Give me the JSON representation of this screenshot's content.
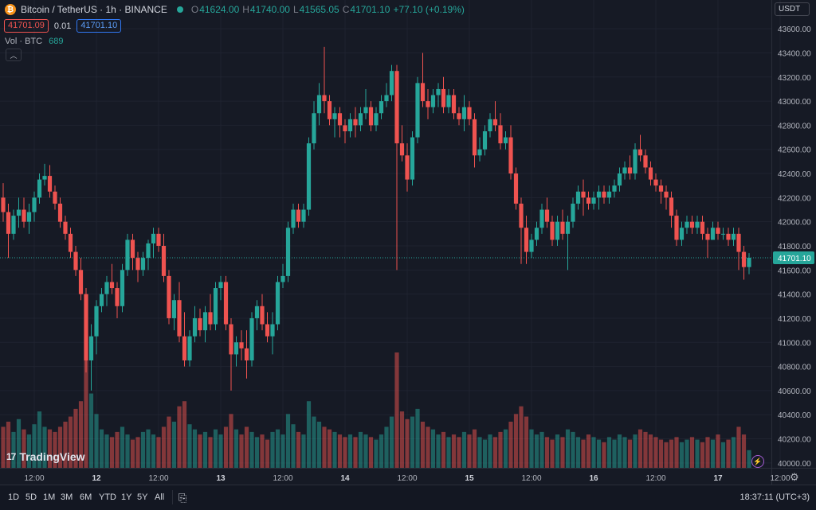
{
  "header": {
    "symbol_icon": "bitcoin-logo-icon",
    "title": "Bitcoin / TetherUS · 1h · BINANCE",
    "open_label": "O",
    "open": "41624.00",
    "high_label": "H",
    "high": "41740.00",
    "low_label": "L",
    "low": "41565.05",
    "close_label": "C",
    "close": "41701.10",
    "change": "+77.10 (+0.19%)"
  },
  "trade": {
    "sell_price": "41701.09",
    "spread": "0.01",
    "buy_price": "41701.10"
  },
  "volume_label": "Vol · BTC",
  "volume_value": "689",
  "currency_button": "USDT",
  "watermark": "TradingView",
  "last_price_label": "41701.10",
  "colors": {
    "up": "#26a69a",
    "down": "#ef5350",
    "background": "#161a25",
    "grid": "#1f2330",
    "price_line": "#26a69a"
  },
  "toolbar": {
    "ranges": [
      "1D",
      "5D",
      "1M",
      "3M",
      "6M",
      "YTD",
      "1Y",
      "5Y",
      "All"
    ],
    "time": "18:37:11 (UTC+3)"
  },
  "chart_data": {
    "type": "candlestick",
    "title": "Bitcoin / TetherUS · 1h · BINANCE",
    "y_axis": {
      "min": 39900,
      "max": 43700,
      "ticks": [
        40000,
        40200,
        40400,
        40600,
        40800,
        41000,
        41200,
        41400,
        41600,
        41800,
        42000,
        42200,
        42400,
        42600,
        42800,
        43000,
        43200,
        43400,
        43600
      ]
    },
    "y_tick_labels": [
      "40000.00",
      "40200.00",
      "40400.00",
      "40600.00",
      "40800.00",
      "41000.00",
      "41200.00",
      "41400.00",
      "41600.00",
      "41800.00",
      "42000.00",
      "42200.00",
      "42400.00",
      "42600.00",
      "42800.00",
      "43000.00",
      "43200.00",
      "43400.00",
      "43600.00"
    ],
    "x_tick_labels": [
      {
        "label": "12:00",
        "bar": 6
      },
      {
        "label": "12",
        "bar": 18
      },
      {
        "label": "12:00",
        "bar": 30
      },
      {
        "label": "13",
        "bar": 42
      },
      {
        "label": "12:00",
        "bar": 54
      },
      {
        "label": "14",
        "bar": 66
      },
      {
        "label": "12:00",
        "bar": 78
      },
      {
        "label": "15",
        "bar": 90
      },
      {
        "label": "12:00",
        "bar": 102
      },
      {
        "label": "16",
        "bar": 114
      },
      {
        "label": "12:00",
        "bar": 126
      },
      {
        "label": "17",
        "bar": 138
      },
      {
        "label": "12:00",
        "bar": 150
      }
    ],
    "last_price": 41701.1,
    "ohlc": [
      [
        42200,
        42320,
        42000,
        42080
      ],
      [
        42080,
        42150,
        41700,
        41900
      ],
      [
        41900,
        42100,
        41850,
        42050
      ],
      [
        42050,
        42200,
        41950,
        42100
      ],
      [
        42100,
        42200,
        41950,
        42000
      ],
      [
        42000,
        42150,
        41900,
        42080
      ],
      [
        42080,
        42250,
        42000,
        42200
      ],
      [
        42200,
        42400,
        42150,
        42350
      ],
      [
        42350,
        42480,
        42300,
        42380
      ],
      [
        42380,
        42470,
        42200,
        42250
      ],
      [
        42250,
        42300,
        42100,
        42150
      ],
      [
        42150,
        42200,
        41950,
        42000
      ],
      [
        42000,
        42050,
        41850,
        41900
      ],
      [
        41900,
        41950,
        41700,
        41750
      ],
      [
        41750,
        41800,
        41550,
        41600
      ],
      [
        41600,
        41700,
        41350,
        41400
      ],
      [
        41400,
        41450,
        40750,
        40850
      ],
      [
        40850,
        41150,
        40600,
        41050
      ],
      [
        41050,
        41350,
        40900,
        41300
      ],
      [
        41300,
        41450,
        41250,
        41400
      ],
      [
        41400,
        41550,
        41300,
        41500
      ],
      [
        41500,
        41650,
        41400,
        41450
      ],
      [
        41450,
        41500,
        41200,
        41300
      ],
      [
        41300,
        41650,
        41250,
        41600
      ],
      [
        41600,
        41900,
        41550,
        41850
      ],
      [
        41850,
        41900,
        41600,
        41700
      ],
      [
        41700,
        41750,
        41500,
        41600
      ],
      [
        41600,
        41750,
        41550,
        41700
      ],
      [
        41700,
        41850,
        41600,
        41820
      ],
      [
        41820,
        41950,
        41700,
        41900
      ],
      [
        41900,
        41950,
        41750,
        41800
      ],
      [
        41800,
        41900,
        41500,
        41550
      ],
      [
        41550,
        41600,
        41150,
        41200
      ],
      [
        41200,
        41400,
        41100,
        41350
      ],
      [
        41350,
        41500,
        41000,
        41050
      ],
      [
        41050,
        41250,
        40800,
        40850
      ],
      [
        40850,
        41100,
        40800,
        41050
      ],
      [
        41050,
        41300,
        41000,
        41200
      ],
      [
        41200,
        41280,
        41050,
        41100
      ],
      [
        41100,
        41300,
        41000,
        41250
      ],
      [
        41250,
        41400,
        41100,
        41150
      ],
      [
        41150,
        41500,
        41100,
        41450
      ],
      [
        41450,
        41550,
        41350,
        41500
      ],
      [
        41500,
        41550,
        41100,
        41150
      ],
      [
        41150,
        41200,
        40600,
        40900
      ],
      [
        40900,
        41050,
        40800,
        41000
      ],
      [
        41000,
        41100,
        40850,
        40950
      ],
      [
        40950,
        41100,
        40700,
        40850
      ],
      [
        40850,
        41250,
        40800,
        41200
      ],
      [
        41200,
        41350,
        41100,
        41300
      ],
      [
        41300,
        41400,
        41100,
        41150
      ],
      [
        41150,
        41250,
        41000,
        41050
      ],
      [
        41050,
        41250,
        40900,
        41150
      ],
      [
        41150,
        41550,
        41100,
        41500
      ],
      [
        41500,
        41650,
        41450,
        41550
      ],
      [
        41550,
        42000,
        41500,
        41950
      ],
      [
        41950,
        42150,
        41900,
        42100
      ],
      [
        42100,
        42150,
        41950,
        42000
      ],
      [
        42000,
        42150,
        41950,
        42100
      ],
      [
        42100,
        42700,
        42050,
        42650
      ],
      [
        42650,
        43000,
        42600,
        42900
      ],
      [
        42900,
        43150,
        42800,
        43050
      ],
      [
        43050,
        43450,
        42900,
        43000
      ],
      [
        43000,
        43050,
        42800,
        42850
      ],
      [
        42850,
        42950,
        42700,
        42900
      ],
      [
        42900,
        42950,
        42700,
        42800
      ],
      [
        42800,
        42850,
        42650,
        42750
      ],
      [
        42750,
        42900,
        42700,
        42850
      ],
      [
        42850,
        42950,
        42700,
        42800
      ],
      [
        42800,
        42950,
        42750,
        42900
      ],
      [
        42900,
        43100,
        42850,
        42950
      ],
      [
        42950,
        43000,
        42750,
        42800
      ],
      [
        42800,
        42950,
        42750,
        42900
      ],
      [
        42900,
        43050,
        42850,
        43000
      ],
      [
        43000,
        43150,
        42950,
        43050
      ],
      [
        43050,
        43300,
        43000,
        43250
      ],
      [
        43250,
        43300,
        41600,
        42650
      ],
      [
        42650,
        42800,
        42500,
        42550
      ],
      [
        42550,
        42650,
        42250,
        42350
      ],
      [
        42350,
        42750,
        42300,
        42700
      ],
      [
        42700,
        43200,
        42650,
        43150
      ],
      [
        43150,
        43400,
        42950,
        43000
      ],
      [
        43000,
        43100,
        42850,
        42950
      ],
      [
        42950,
        43100,
        42900,
        43050
      ],
      [
        43050,
        43150,
        42950,
        43100
      ],
      [
        43100,
        43200,
        42900,
        42950
      ],
      [
        42950,
        43100,
        42900,
        43050
      ],
      [
        43050,
        43100,
        42850,
        42900
      ],
      [
        42900,
        42950,
        42800,
        42850
      ],
      [
        42850,
        43050,
        42750,
        42950
      ],
      [
        42950,
        43000,
        42800,
        42850
      ],
      [
        42850,
        42900,
        42450,
        42550
      ],
      [
        42550,
        42700,
        42500,
        42600
      ],
      [
        42600,
        42800,
        42550,
        42750
      ],
      [
        42750,
        42900,
        42700,
        42850
      ],
      [
        42850,
        43000,
        42750,
        42800
      ],
      [
        42800,
        42900,
        42600,
        42650
      ],
      [
        42650,
        42750,
        42600,
        42700
      ],
      [
        42700,
        42800,
        42350,
        42400
      ],
      [
        42400,
        42450,
        42100,
        42150
      ],
      [
        42150,
        42200,
        41650,
        41950
      ],
      [
        41950,
        42050,
        41650,
        41750
      ],
      [
        41750,
        41900,
        41700,
        41850
      ],
      [
        41850,
        42000,
        41800,
        41950
      ],
      [
        41950,
        42150,
        41900,
        42100
      ],
      [
        42100,
        42200,
        41950,
        42000
      ],
      [
        42000,
        42050,
        41800,
        41850
      ],
      [
        41850,
        42050,
        41800,
        42000
      ],
      [
        42000,
        42100,
        41850,
        41900
      ],
      [
        41900,
        42050,
        41600,
        42000
      ],
      [
        42000,
        42200,
        41950,
        42150
      ],
      [
        42150,
        42300,
        42100,
        42250
      ],
      [
        42250,
        42350,
        42050,
        42200
      ],
      [
        42200,
        42250,
        42100,
        42150
      ],
      [
        42150,
        42250,
        42100,
        42200
      ],
      [
        42200,
        42300,
        42100,
        42250
      ],
      [
        42250,
        42300,
        42150,
        42200
      ],
      [
        42200,
        42300,
        42150,
        42250
      ],
      [
        42250,
        42350,
        42200,
        42300
      ],
      [
        42300,
        42450,
        42250,
        42400
      ],
      [
        42400,
        42500,
        42350,
        42450
      ],
      [
        42450,
        42550,
        42350,
        42400
      ],
      [
        42400,
        42650,
        42350,
        42600
      ],
      [
        42600,
        42720,
        42500,
        42550
      ],
      [
        42550,
        42600,
        42400,
        42450
      ],
      [
        42450,
        42500,
        42300,
        42350
      ],
      [
        42350,
        42400,
        42250,
        42300
      ],
      [
        42300,
        42350,
        42150,
        42250
      ],
      [
        42250,
        42300,
        42100,
        42200
      ],
      [
        42200,
        42250,
        41950,
        42050
      ],
      [
        42050,
        42100,
        41800,
        41850
      ],
      [
        41850,
        42000,
        41800,
        41950
      ],
      [
        41950,
        42050,
        41900,
        42000
      ],
      [
        42000,
        42050,
        41900,
        41950
      ],
      [
        41950,
        42050,
        41900,
        42000
      ],
      [
        42000,
        42050,
        41850,
        41900
      ],
      [
        41900,
        41950,
        41700,
        41850
      ],
      [
        41850,
        42000,
        41850,
        41950
      ],
      [
        41950,
        42000,
        41850,
        41900
      ],
      [
        41900,
        41950,
        41850,
        41900
      ],
      [
        41900,
        41950,
        41800,
        41850
      ],
      [
        41850,
        41950,
        41800,
        41900
      ],
      [
        41900,
        41950,
        41600,
        41750
      ],
      [
        41750,
        41800,
        41520,
        41624
      ],
      [
        41624,
        41740,
        41565,
        41701.1
      ]
    ],
    "volume": [
      1600,
      1800,
      1400,
      1900,
      1500,
      1300,
      1700,
      2200,
      1600,
      1500,
      1400,
      1600,
      1800,
      2000,
      2300,
      2600,
      4200,
      2900,
      2100,
      1500,
      1300,
      1200,
      1400,
      1600,
      1300,
      1100,
      1200,
      1400,
      1500,
      1300,
      1200,
      1600,
      2000,
      1800,
      2400,
      2600,
      1700,
      1500,
      1300,
      1400,
      1200,
      1500,
      1300,
      1600,
      2100,
      1500,
      1300,
      1600,
      1400,
      1200,
      1300,
      1100,
      1400,
      1500,
      1300,
      2100,
      1700,
      1400,
      1300,
      2600,
      2000,
      1800,
      1600,
      1500,
      1400,
      1300,
      1200,
      1300,
      1200,
      1400,
      1300,
      1200,
      1100,
      1300,
      1600,
      2000,
      4500,
      2200,
      1900,
      2000,
      2300,
      1800,
      1600,
      1500,
      1300,
      1400,
      1200,
      1300,
      1200,
      1400,
      1300,
      1500,
      1200,
      1100,
      1300,
      1200,
      1400,
      1500,
      1800,
      2100,
      2400,
      2000,
      1500,
      1300,
      1400,
      1200,
      1100,
      1300,
      1200,
      1500,
      1400,
      1200,
      1100,
      1300,
      1200,
      1100,
      1000,
      1200,
      1100,
      1300,
      1200,
      1100,
      1300,
      1500,
      1400,
      1300,
      1200,
      1100,
      1000,
      1100,
      1200,
      1000,
      1100,
      1200,
      1100,
      1000,
      1200,
      1100,
      1300,
      1000,
      1100,
      1200,
      1600,
      1300,
      689
    ]
  }
}
